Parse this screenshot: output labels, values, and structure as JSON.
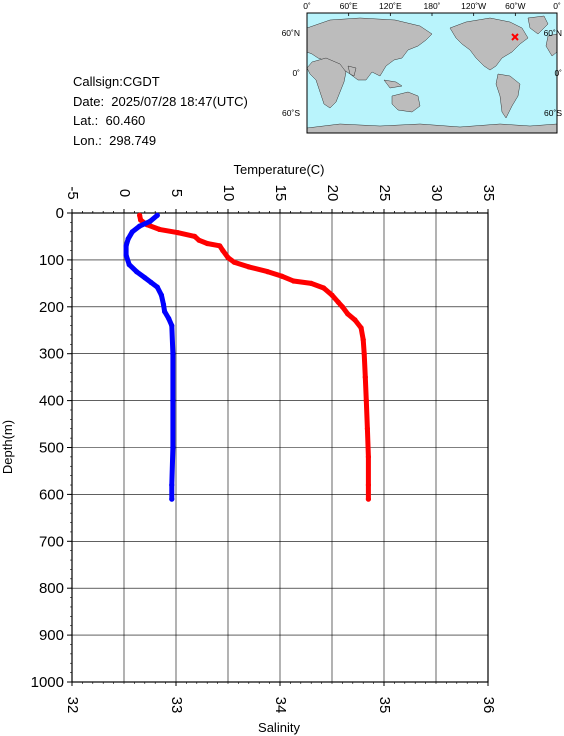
{
  "info": {
    "callsign": "Callsign:CGDT",
    "date": "Date:  2025/07/28 18:47(UTC)",
    "lat": "Lat.:  60.460",
    "lon": "Lon.:  298.749"
  },
  "map": {
    "lon_labels": [
      "0˚",
      "60˚E",
      "120˚E",
      "180˚",
      "120˚W",
      "60˚W",
      "0˚"
    ],
    "lat_labels": [
      "60˚N",
      "0˚",
      "60˚S"
    ],
    "ocean_color": "#b9f4fc",
    "land_color": "#bcbcbc",
    "marker_color": "#ff0000"
  },
  "chart_data": {
    "type": "line",
    "xlabel_top": "Temperature(C)",
    "xlabel_bottom": "Salinity",
    "ylabel": "Depth(m)",
    "temperature_ticks": [
      "-5",
      "0",
      "5",
      "10",
      "15",
      "20",
      "25",
      "30",
      "35"
    ],
    "salinity_ticks": [
      "32",
      "33",
      "34",
      "35",
      "36"
    ],
    "depth_ticks": [
      "0",
      "100",
      "200",
      "300",
      "400",
      "500",
      "600",
      "700",
      "800",
      "900",
      "1000"
    ],
    "temperature_range": [
      -5,
      35
    ],
    "salinity_range": [
      32,
      36
    ],
    "depth_range": [
      0,
      1000
    ],
    "grid": true,
    "series": [
      {
        "quantity": "temperature",
        "color": "#ff0000",
        "points": [
          [
            1.5,
            5
          ],
          [
            1.6,
            15
          ],
          [
            2.2,
            25
          ],
          [
            3.4,
            35
          ],
          [
            5.2,
            42
          ],
          [
            6.8,
            50
          ],
          [
            7.2,
            58
          ],
          [
            8.0,
            65
          ],
          [
            9.2,
            70
          ],
          [
            9.5,
            80
          ],
          [
            10.0,
            95
          ],
          [
            10.6,
            105
          ],
          [
            12.0,
            115
          ],
          [
            13.8,
            125
          ],
          [
            15.2,
            135
          ],
          [
            16.3,
            145
          ],
          [
            18.0,
            150
          ],
          [
            19.2,
            160
          ],
          [
            20.0,
            175
          ],
          [
            20.6,
            190
          ],
          [
            21.0,
            200
          ],
          [
            21.5,
            215
          ],
          [
            22.2,
            228
          ],
          [
            22.8,
            245
          ],
          [
            23.0,
            270
          ],
          [
            23.1,
            300
          ],
          [
            23.2,
            350
          ],
          [
            23.3,
            400
          ],
          [
            23.4,
            460
          ],
          [
            23.5,
            520
          ],
          [
            23.5,
            580
          ],
          [
            23.5,
            610
          ]
        ]
      },
      {
        "quantity": "salinity",
        "color": "#0000ff",
        "points": [
          [
            32.82,
            5
          ],
          [
            32.75,
            18
          ],
          [
            32.65,
            28
          ],
          [
            32.58,
            40
          ],
          [
            32.54,
            55
          ],
          [
            32.52,
            70
          ],
          [
            32.52,
            90
          ],
          [
            32.55,
            110
          ],
          [
            32.62,
            125
          ],
          [
            32.7,
            138
          ],
          [
            32.76,
            148
          ],
          [
            32.82,
            158
          ],
          [
            32.86,
            175
          ],
          [
            32.88,
            195
          ],
          [
            32.89,
            210
          ],
          [
            32.93,
            225
          ],
          [
            32.96,
            240
          ],
          [
            32.97,
            300
          ],
          [
            32.97,
            400
          ],
          [
            32.97,
            500
          ],
          [
            32.96,
            580
          ],
          [
            32.96,
            610
          ]
        ]
      }
    ]
  }
}
